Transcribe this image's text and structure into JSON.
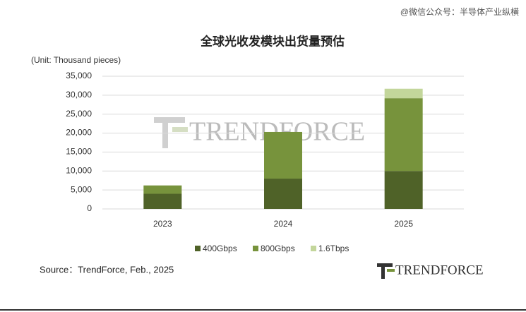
{
  "source_note": "@微信公众号：半导体产业纵横",
  "chart_data": {
    "type": "stacked_bar",
    "title": "全球光收发模块出货量预估",
    "y_label": "(Unit: Thousand pieces)",
    "categories": [
      "2023",
      "2024",
      "2025"
    ],
    "series": [
      {
        "name": "400Gbps",
        "color": "#4f6228",
        "values": [
          4000,
          8000,
          10000
        ]
      },
      {
        "name": "800Gbps",
        "color": "#77933c",
        "values": [
          2200,
          12300,
          19200
        ]
      },
      {
        "name": "1.6Tbps",
        "color": "#c3d69b",
        "values": [
          0,
          0,
          2500
        ]
      }
    ],
    "ylim": [
      0,
      35000
    ],
    "yticks": [
      0,
      {
        "value": 5000,
        "label": "5,000"
      },
      {
        "value": 10000,
        "label": "10,000"
      },
      {
        "value": 15000,
        "label": "15,000"
      },
      {
        "value": 20000,
        "label": "20,000"
      },
      {
        "value": 25000,
        "label": "25,000"
      },
      {
        "value": 30000,
        "label": "30,000"
      },
      {
        "value": 35000,
        "label": "35,000"
      }
    ],
    "grid": true,
    "legend": "bottom",
    "watermark": "TRENDFORCE",
    "source": "Source：TrendForce, Feb., 2025",
    "logo": "TRENDFORCE"
  }
}
